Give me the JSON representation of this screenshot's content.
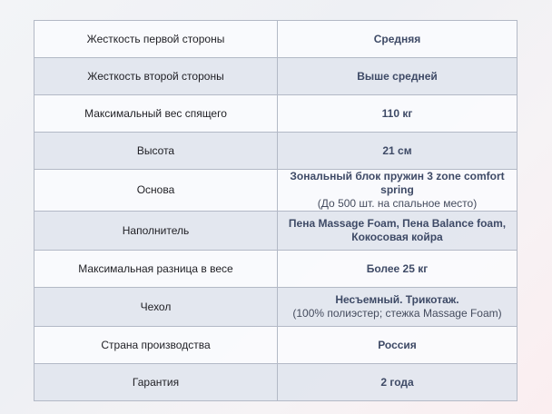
{
  "rows": [
    {
      "label": "Жесткость первой стороны",
      "value": "Средняя",
      "note": ""
    },
    {
      "label": "Жесткость второй стороны",
      "value": "Выше средней",
      "note": ""
    },
    {
      "label": "Максимальный вес спящего",
      "value": "110 кг",
      "note": ""
    },
    {
      "label": "Высота",
      "value": "21 см",
      "note": ""
    },
    {
      "label": "Основа",
      "value": "Зональный блок пружин 3 zone comfort spring",
      "note": "(До 500 шт. на спальное место)"
    },
    {
      "label": "Наполнитель",
      "value": "Пена Massage Foam,  Пена Balance foam, Кокосовая койра",
      "note": ""
    },
    {
      "label": "Максимальная разница в весе",
      "value": "Более 25 кг",
      "note": ""
    },
    {
      "label": "Чехол",
      "value": "Несъемный. Трикотаж.",
      "note": "(100% полиэстер; стежка Massage Foam)"
    },
    {
      "label": "Страна производства",
      "value": "Россия",
      "note": ""
    },
    {
      "label": "Гарантия",
      "value": "2 года",
      "note": ""
    }
  ]
}
